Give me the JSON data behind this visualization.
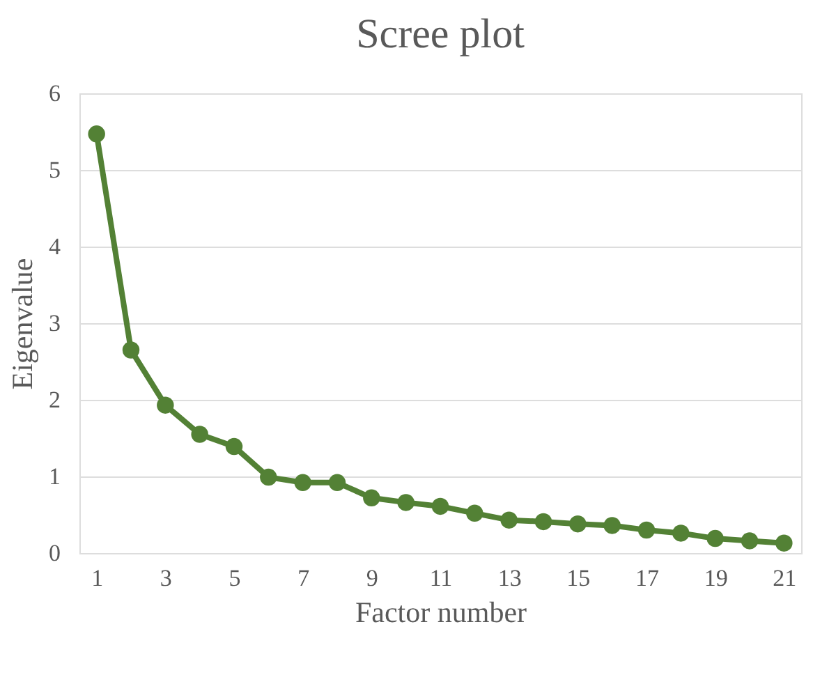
{
  "chart_data": {
    "type": "line",
    "title": "Scree plot",
    "xlabel": "Factor number",
    "ylabel": "Eigenvalue",
    "x": [
      1,
      2,
      3,
      4,
      5,
      6,
      7,
      8,
      9,
      10,
      11,
      12,
      13,
      14,
      15,
      16,
      17,
      18,
      19,
      20,
      21
    ],
    "series": [
      {
        "color": "#538135",
        "values": [
          5.47,
          2.65,
          1.93,
          1.55,
          1.39,
          0.99,
          0.92,
          0.92,
          0.72,
          0.66,
          0.61,
          0.52,
          0.43,
          0.41,
          0.38,
          0.36,
          0.3,
          0.26,
          0.19,
          0.16,
          0.13
        ]
      }
    ],
    "xlim": [
      0.5,
      21.5
    ],
    "xticks": [
      1,
      3,
      5,
      7,
      9,
      11,
      13,
      15,
      17,
      19,
      21
    ],
    "ylim": [
      0,
      6
    ],
    "yticks": [
      0,
      1,
      2,
      3,
      4,
      5,
      6
    ],
    "grid": "y",
    "marker": "circle",
    "line_style": "solid"
  }
}
